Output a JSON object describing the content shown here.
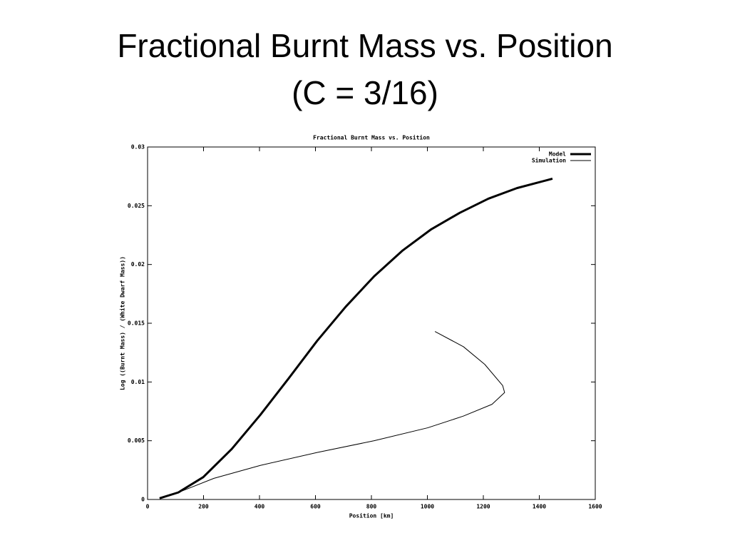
{
  "slide": {
    "title_lines": [
      "Fractional Burnt Mass vs. Position",
      "(C = 3/16)"
    ]
  },
  "chart_data": {
    "type": "line",
    "title": "Fractional Burnt Mass vs. Position",
    "x_label": "Position [km]",
    "y_label": "Log ((Burnt Mass) / (White Dwarf Mass))",
    "xlim": [
      0,
      1600
    ],
    "xticks": [
      0,
      200,
      400,
      600,
      800,
      1000,
      1200,
      1400,
      1600
    ],
    "ylim": [
      0,
      0.03
    ],
    "yticks": [
      0,
      0.005,
      0.01,
      0.015,
      0.02,
      0.025,
      0.03
    ],
    "grid": false,
    "legend": "top-right",
    "series": [
      {
        "name": "Model",
        "color": "#000000",
        "line_width": 3,
        "x": [
          43,
          110,
          199,
          301,
          403,
          504,
          606,
          708,
          810,
          912,
          1014,
          1116,
          1218,
          1320,
          1447
        ],
        "values": [
          0.0001,
          0.0006,
          0.0019,
          0.0043,
          0.0072,
          0.0103,
          0.0135,
          0.0164,
          0.019,
          0.0212,
          0.023,
          0.0244,
          0.0256,
          0.0265,
          0.0273
        ]
      },
      {
        "name": "Simulation",
        "color": "#000000",
        "line_width": 1,
        "x": [
          43,
          110,
          237,
          403,
          606,
          810,
          1001,
          1129,
          1231,
          1276,
          1269,
          1205,
          1129,
          1027
        ],
        "values": [
          0.0001,
          0.0006,
          0.0018,
          0.0029,
          0.004,
          0.005,
          0.0061,
          0.0071,
          0.0081,
          0.0091,
          0.0097,
          0.0115,
          0.013,
          0.0143
        ]
      }
    ]
  }
}
